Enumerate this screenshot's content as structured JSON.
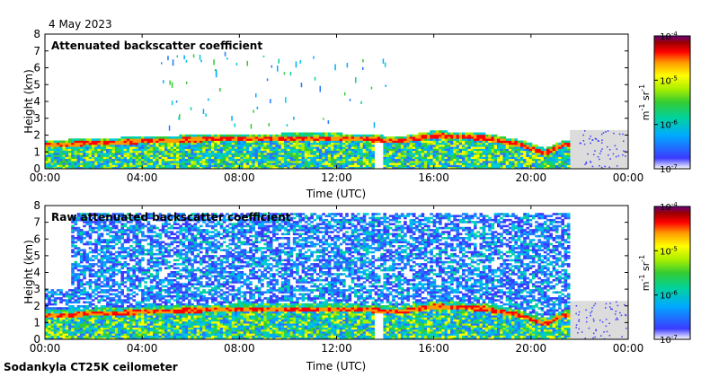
{
  "date_label": "4 May 2023",
  "footer_label": "Sodankyla CT25K ceilometer",
  "colorbar": {
    "unit_base": "m",
    "unit_exp1": "-1",
    "unit_mid": " sr",
    "unit_exp2": "-1",
    "ticks": [
      {
        "base": "10",
        "exp": "-4",
        "value": 0.0001
      },
      {
        "base": "10",
        "exp": "-5",
        "value": 1e-05
      },
      {
        "base": "10",
        "exp": "-6",
        "value": 1e-06
      },
      {
        "base": "10",
        "exp": "-7",
        "value": 1e-07
      }
    ],
    "scale": "log",
    "colors": [
      "#ffffff",
      "#3b3bff",
      "#00aaff",
      "#00d2a0",
      "#33cc33",
      "#aaee00",
      "#ffff00",
      "#ff9900",
      "#ff0000",
      "#990000",
      "#6a0080"
    ]
  },
  "chart_data": [
    {
      "type": "heatmap",
      "title": "Attenuated backscatter coefficient",
      "xlabel": "Time (UTC)",
      "ylabel": "Height (km)",
      "x_ticks": [
        "00:00",
        "04:00",
        "08:00",
        "12:00",
        "16:00",
        "20:00",
        "00:00"
      ],
      "x_range_hours": [
        0,
        24
      ],
      "y_ticks": [
        "0",
        "1",
        "2",
        "3",
        "4",
        "5",
        "6",
        "7",
        "8"
      ],
      "ylim": [
        0,
        8
      ],
      "grid": false,
      "cloud_base_km": [
        {
          "t": 0.5,
          "h": 1.4
        },
        {
          "t": 2.0,
          "h": 1.5
        },
        {
          "t": 4.0,
          "h": 1.6
        },
        {
          "t": 6.0,
          "h": 1.7
        },
        {
          "t": 8.0,
          "h": 1.75
        },
        {
          "t": 10.0,
          "h": 1.8
        },
        {
          "t": 12.0,
          "h": 1.8
        },
        {
          "t": 13.5,
          "h": 1.7
        },
        {
          "t": 14.5,
          "h": 1.6
        },
        {
          "t": 16.0,
          "h": 1.95
        },
        {
          "t": 18.0,
          "h": 1.8
        },
        {
          "t": 19.5,
          "h": 1.4
        },
        {
          "t": 20.5,
          "h": 0.9
        },
        {
          "t": 21.3,
          "h": 1.4
        }
      ]
    },
    {
      "type": "heatmap",
      "title": "Raw attenuated backscatter coefficient",
      "xlabel": "Time (UTC)",
      "ylabel": "Height (km)",
      "x_ticks": [
        "00:00",
        "04:00",
        "08:00",
        "12:00",
        "16:00",
        "20:00",
        "00:00"
      ],
      "x_range_hours": [
        0,
        24
      ],
      "y_ticks": [
        "0",
        "1",
        "2",
        "3",
        "4",
        "5",
        "6",
        "7",
        "8"
      ],
      "ylim": [
        0,
        8
      ],
      "grid": false,
      "cloud_base_km": [
        {
          "t": 0.5,
          "h": 1.4
        },
        {
          "t": 2.0,
          "h": 1.5
        },
        {
          "t": 4.0,
          "h": 1.6
        },
        {
          "t": 6.0,
          "h": 1.7
        },
        {
          "t": 8.0,
          "h": 1.75
        },
        {
          "t": 10.0,
          "h": 1.8
        },
        {
          "t": 12.0,
          "h": 1.8
        },
        {
          "t": 13.5,
          "h": 1.7
        },
        {
          "t": 14.5,
          "h": 1.6
        },
        {
          "t": 16.0,
          "h": 1.95
        },
        {
          "t": 18.0,
          "h": 1.8
        },
        {
          "t": 19.5,
          "h": 1.4
        },
        {
          "t": 20.5,
          "h": 0.9
        },
        {
          "t": 21.3,
          "h": 1.4
        }
      ]
    }
  ]
}
